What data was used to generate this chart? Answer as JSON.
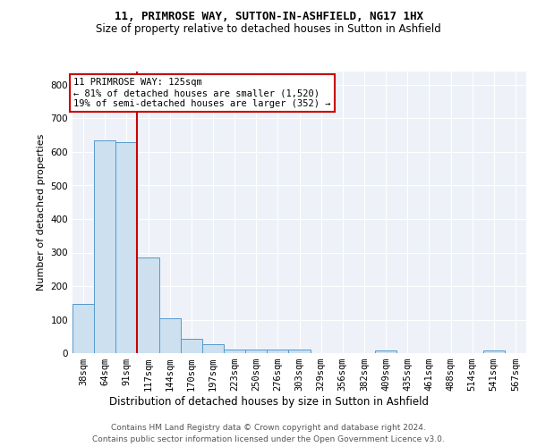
{
  "title": "11, PRIMROSE WAY, SUTTON-IN-ASHFIELD, NG17 1HX",
  "subtitle": "Size of property relative to detached houses in Sutton in Ashfield",
  "xlabel": "Distribution of detached houses by size in Sutton in Ashfield",
  "ylabel": "Number of detached properties",
  "footer_line1": "Contains HM Land Registry data © Crown copyright and database right 2024.",
  "footer_line2": "Contains public sector information licensed under the Open Government Licence v3.0.",
  "annotation_title": "11 PRIMROSE WAY: 125sqm",
  "annotation_line1": "← 81% of detached houses are smaller (1,520)",
  "annotation_line2": "19% of semi-detached houses are larger (352) →",
  "bar_color": "#cce0f0",
  "bar_edge_color": "#5599cc",
  "redline_color": "#cc0000",
  "bg_color": "#eef2f8",
  "grid_color": "#ffffff",
  "categories": [
    "38sqm",
    "64sqm",
    "91sqm",
    "117sqm",
    "144sqm",
    "170sqm",
    "197sqm",
    "223sqm",
    "250sqm",
    "276sqm",
    "303sqm",
    "329sqm",
    "356sqm",
    "382sqm",
    "409sqm",
    "435sqm",
    "461sqm",
    "488sqm",
    "514sqm",
    "541sqm",
    "567sqm"
  ],
  "values": [
    148,
    634,
    628,
    285,
    103,
    42,
    28,
    12,
    12,
    10,
    10,
    0,
    0,
    0,
    8,
    0,
    0,
    0,
    0,
    8,
    0
  ],
  "ylim": [
    0,
    840
  ],
  "yticks": [
    0,
    100,
    200,
    300,
    400,
    500,
    600,
    700,
    800
  ],
  "redline_x": 2.5,
  "title_fontsize": 9,
  "subtitle_fontsize": 8.5,
  "ylabel_fontsize": 8,
  "xlabel_fontsize": 8.5,
  "tick_fontsize": 7.5,
  "ann_fontsize": 7.5,
  "footer_fontsize": 6.5
}
